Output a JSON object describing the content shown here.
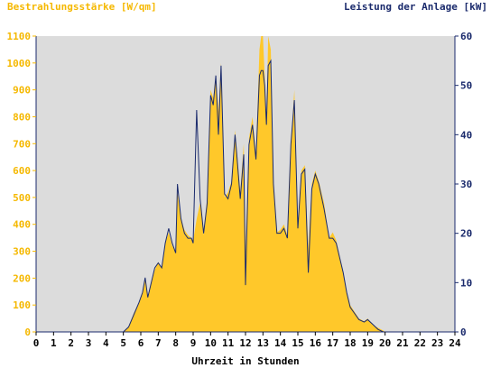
{
  "chart_data": {
    "type": "area",
    "title_left": "Bestrahlungsstärke [W/qm]",
    "title_right": "Leistung der Anlage [kW]",
    "xlabel": "Uhrzeit in Stunden",
    "x_ticks": [
      "0",
      "1",
      "2",
      "3",
      "4",
      "5",
      "6",
      "7",
      "8",
      "9",
      "10",
      "11",
      "12",
      "13",
      "14",
      "15",
      "16",
      "17",
      "18",
      "19",
      "20",
      "21",
      "22",
      "23",
      "24"
    ],
    "y_left_ticks": [
      "0",
      "100",
      "200",
      "300",
      "400",
      "500",
      "600",
      "700",
      "800",
      "900",
      "1000",
      "1100"
    ],
    "y_right_ticks": [
      "0",
      "10",
      "20",
      "30",
      "40",
      "50",
      "60"
    ],
    "xlim": [
      0,
      24
    ],
    "ylim_left": [
      0,
      1100
    ],
    "ylim_right": [
      0,
      60
    ],
    "grid": false,
    "colors": {
      "irradiance_fill": "#ffc82a",
      "power_line": "#1a2a6c",
      "plot_bg": "#dcdcdc",
      "left_axis": "#f5b800",
      "right_axis": "#1a2a6c"
    },
    "series": [
      {
        "axis": "left",
        "x": [
          0,
          5.0,
          5.3,
          5.6,
          5.9,
          6.1,
          6.25,
          6.4,
          6.6,
          6.8,
          7.0,
          7.2,
          7.4,
          7.6,
          7.8,
          8.0,
          8.1,
          8.3,
          8.5,
          8.7,
          8.9,
          9.0,
          9.2,
          9.4,
          9.6,
          9.8,
          10.0,
          10.15,
          10.3,
          10.45,
          10.6,
          10.8,
          11.0,
          11.2,
          11.4,
          11.5,
          11.7,
          11.9,
          12.0,
          12.2,
          12.4,
          12.6,
          12.8,
          12.9,
          13.0,
          13.1,
          13.2,
          13.3,
          13.45,
          13.6,
          13.8,
          14.0,
          14.2,
          14.4,
          14.6,
          14.8,
          15.0,
          15.2,
          15.4,
          15.6,
          15.8,
          16.0,
          16.2,
          16.5,
          16.8,
          17.0,
          17.2,
          17.4,
          17.6,
          17.8,
          18.0,
          18.2,
          18.5,
          18.8,
          19.0,
          19.3,
          19.6,
          19.9,
          20.0,
          24
        ],
        "y": [
          0,
          0,
          20,
          70,
          110,
          150,
          200,
          130,
          180,
          230,
          260,
          240,
          330,
          370,
          320,
          300,
          520,
          420,
          380,
          360,
          350,
          340,
          420,
          480,
          360,
          500,
          900,
          870,
          950,
          820,
          1000,
          500,
          520,
          560,
          750,
          680,
          520,
          700,
          300,
          720,
          800,
          660,
          1050,
          1100,
          1100,
          950,
          780,
          1100,
          1050,
          550,
          370,
          380,
          400,
          360,
          700,
          900,
          400,
          600,
          620,
          310,
          550,
          600,
          560,
          480,
          350,
          370,
          340,
          280,
          220,
          150,
          100,
          80,
          50,
          40,
          50,
          25,
          15,
          5,
          0,
          0
        ]
      },
      {
        "axis": "right",
        "x": [
          0,
          5.0,
          5.3,
          5.6,
          5.9,
          6.1,
          6.25,
          6.4,
          6.6,
          6.8,
          7.0,
          7.2,
          7.4,
          7.6,
          7.8,
          8.0,
          8.1,
          8.3,
          8.5,
          8.7,
          8.9,
          9.0,
          9.2,
          9.4,
          9.6,
          9.8,
          10.0,
          10.15,
          10.3,
          10.45,
          10.6,
          10.8,
          11.0,
          11.2,
          11.4,
          11.5,
          11.7,
          11.9,
          12.0,
          12.2,
          12.4,
          12.6,
          12.8,
          12.9,
          13.0,
          13.1,
          13.2,
          13.3,
          13.45,
          13.6,
          13.8,
          14.0,
          14.2,
          14.4,
          14.6,
          14.8,
          15.0,
          15.2,
          15.4,
          15.6,
          15.8,
          16.0,
          16.2,
          16.5,
          16.8,
          17.0,
          17.2,
          17.4,
          17.6,
          17.8,
          18.0,
          18.2,
          18.5,
          18.8,
          19.0,
          19.3,
          19.6,
          19.9,
          20.0,
          24
        ],
        "y": [
          0,
          0,
          1,
          3.5,
          6,
          8,
          11,
          7,
          10,
          13,
          14,
          13,
          18,
          21,
          18,
          16,
          30,
          23,
          20,
          19,
          19,
          18,
          45,
          27,
          20,
          26,
          48,
          46,
          52,
          40,
          54,
          28,
          27,
          30,
          40,
          36,
          27,
          36,
          9.5,
          38,
          42,
          35,
          52,
          53,
          53,
          50,
          42,
          54,
          55,
          30,
          20,
          20,
          21,
          19,
          38,
          47,
          21,
          32,
          33,
          12,
          29,
          32,
          30,
          25,
          19,
          19,
          18,
          15,
          12,
          8,
          5,
          4,
          2.5,
          2,
          2.5,
          1.5,
          0.5,
          0,
          0,
          0
        ]
      }
    ]
  }
}
